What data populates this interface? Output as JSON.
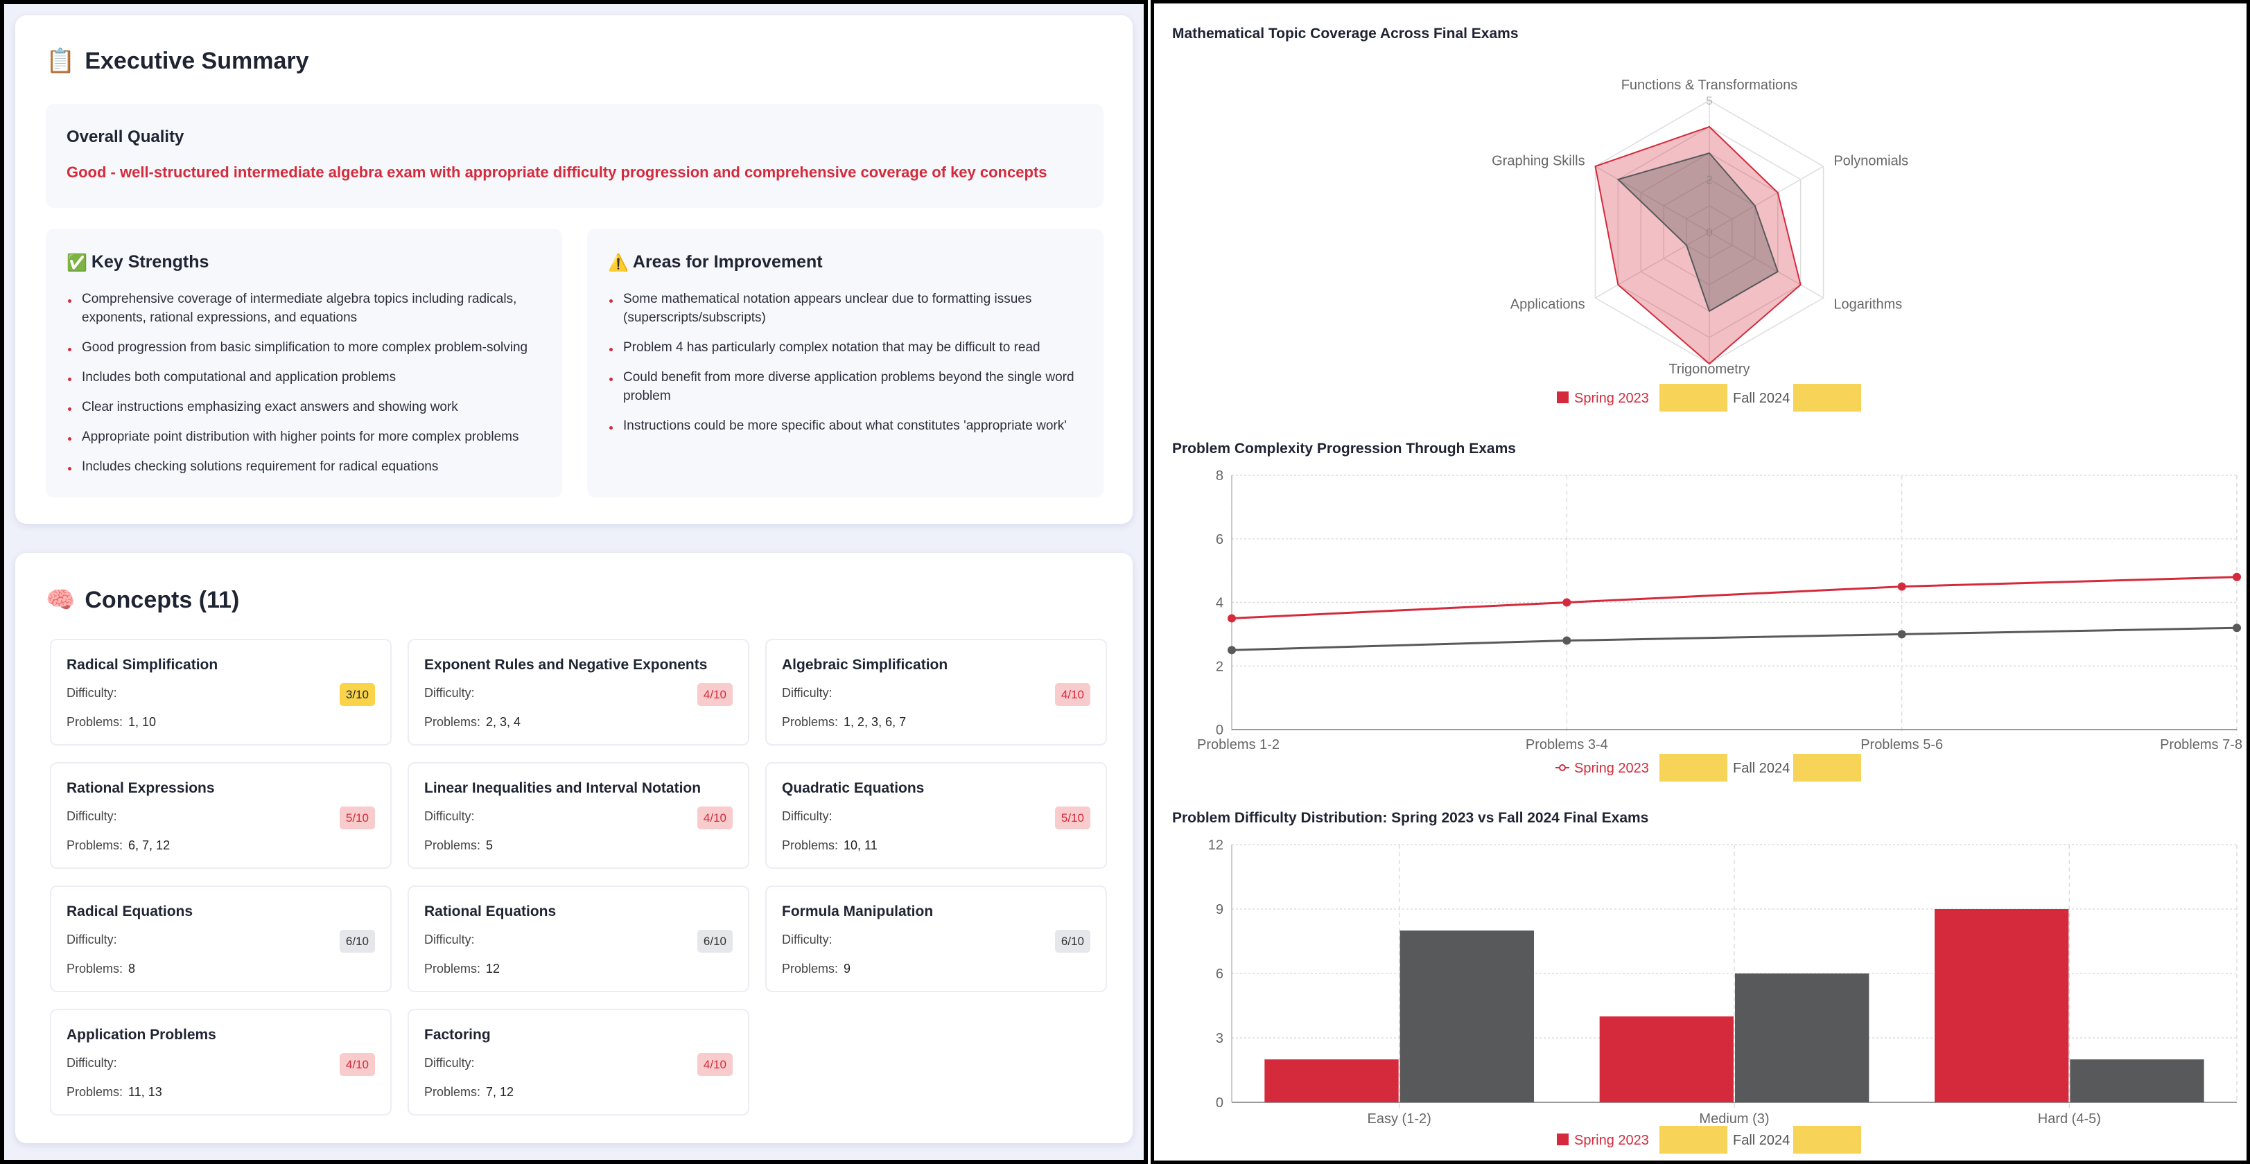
{
  "summary": {
    "icon": "clipboard-icon",
    "title": "Executive Summary",
    "overall_quality_label": "Overall Quality",
    "overall_quality_text": "Good - well-structured intermediate algebra exam with appropriate difficulty progression and comprehensive coverage of key concepts",
    "strengths": {
      "icon": "check-mark-icon",
      "title": "Key Strengths",
      "items": [
        "Comprehensive coverage of intermediate algebra topics including radicals, exponents, rational expressions, and equations",
        "Good progression from basic simplification to more complex problem-solving",
        "Includes both computational and application problems",
        "Clear instructions emphasizing exact answers and showing work",
        "Appropriate point distribution with higher points for more complex problems",
        "Includes checking solutions requirement for radical equations"
      ]
    },
    "improvements": {
      "icon": "warning-icon",
      "title": "Areas for Improvement",
      "items": [
        "Some mathematical notation appears unclear due to formatting issues (superscripts/subscripts)",
        "Problem 4 has particularly complex notation that may be difficult to read",
        "Could benefit from more diverse application problems beyond the single word problem",
        "Instructions could be more specific about what constitutes 'appropriate work'"
      ]
    }
  },
  "concepts": {
    "icon": "brain-icon",
    "title": "Concepts (11)",
    "difficulty_label": "Difficulty:",
    "problems_label": "Problems:",
    "badge_colors": {
      "3": {
        "bg": "#f9d448",
        "fg": "#1f2433"
      },
      "4": {
        "bg": "#f8cccc",
        "fg": "#d42a3c"
      },
      "5": {
        "bg": "#f8cccc",
        "fg": "#d42a3c"
      },
      "6": {
        "bg": "#e5e7eb",
        "fg": "#333333"
      }
    },
    "items": [
      {
        "name": "Radical Simplification",
        "difficulty": "3/10",
        "level": 3,
        "problems": "1, 10"
      },
      {
        "name": "Exponent Rules and Negative Exponents",
        "difficulty": "4/10",
        "level": 4,
        "problems": "2, 3, 4"
      },
      {
        "name": "Algebraic Simplification",
        "difficulty": "4/10",
        "level": 4,
        "problems": "1, 2, 3, 6, 7"
      },
      {
        "name": "Rational Expressions",
        "difficulty": "5/10",
        "level": 5,
        "problems": "6, 7, 12"
      },
      {
        "name": "Linear Inequalities and Interval Notation",
        "difficulty": "4/10",
        "level": 4,
        "problems": "5"
      },
      {
        "name": "Quadratic Equations",
        "difficulty": "5/10",
        "level": 5,
        "problems": "10, 11"
      },
      {
        "name": "Radical Equations",
        "difficulty": "6/10",
        "level": 6,
        "problems": "8"
      },
      {
        "name": "Rational Equations",
        "difficulty": "6/10",
        "level": 6,
        "problems": "12"
      },
      {
        "name": "Formula Manipulation",
        "difficulty": "6/10",
        "level": 6,
        "problems": "9"
      },
      {
        "name": "Application Problems",
        "difficulty": "4/10",
        "level": 4,
        "problems": "11, 13"
      },
      {
        "name": "Factoring",
        "difficulty": "4/10",
        "level": 4,
        "problems": "7, 12"
      }
    ]
  },
  "colors": {
    "spring": "#d42a3c",
    "fall": "#58595b",
    "redaction": "#f7d358"
  },
  "chart_data": [
    {
      "type": "radar",
      "title": "Mathematical Topic Coverage Across Final Exams",
      "categories": [
        "Functions & Transformations",
        "Polynomials",
        "Logarithms",
        "Trigonometry",
        "Applications",
        "Graphing Skills"
      ],
      "rlim": [
        0,
        5
      ],
      "tick_labels": [
        "0",
        "2",
        "5"
      ],
      "series": [
        {
          "name": "Spring 2023",
          "values": [
            4,
            3,
            4,
            5,
            4,
            5
          ]
        },
        {
          "name": "Fall 2024",
          "values": [
            3,
            2,
            3,
            3,
            1,
            4
          ]
        }
      ],
      "legend": "bottom",
      "legend_redacted": true
    },
    {
      "type": "line",
      "title": "Problem Complexity Progression Through Exams",
      "categories": [
        "Problems 1-2",
        "Problems 3-4",
        "Problems 5-6",
        "Problems 7-8"
      ],
      "ylim": [
        0,
        8
      ],
      "yticks": [
        0,
        2,
        4,
        6,
        8
      ],
      "grid": true,
      "series": [
        {
          "name": "Spring 2023",
          "values": [
            3.5,
            4.0,
            4.5,
            4.8
          ]
        },
        {
          "name": "Fall 2024",
          "values": [
            2.5,
            2.8,
            3.0,
            3.2
          ]
        }
      ],
      "legend": "bottom",
      "legend_redacted": true
    },
    {
      "type": "bar",
      "title": "Problem Difficulty Distribution: Spring 2023 vs Fall 2024 Final Exams",
      "categories": [
        "Easy (1-2)",
        "Medium (3)",
        "Hard (4-5)"
      ],
      "ylim": [
        0,
        12
      ],
      "yticks": [
        0,
        3,
        6,
        9,
        12
      ],
      "grid": true,
      "series": [
        {
          "name": "Spring 2023",
          "values": [
            2,
            4,
            9
          ]
        },
        {
          "name": "Fall 2024",
          "values": [
            8,
            6,
            2
          ]
        }
      ],
      "legend": "bottom",
      "legend_redacted": true
    }
  ]
}
